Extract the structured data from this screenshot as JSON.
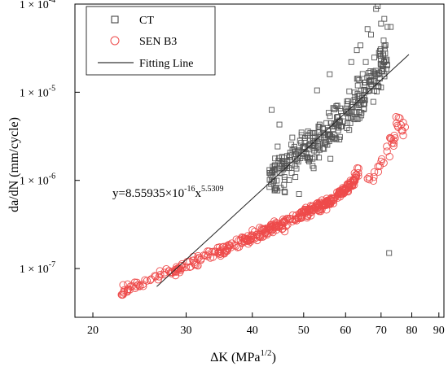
{
  "chart_data": {
    "type": "scatter",
    "xlabel": "ΔK (MPa",
    "xlabel_sup": "1/2",
    "xlabel_end": ")",
    "ylabel": "da/dN (mm/cycle)",
    "x_scale": "log",
    "y_scale": "log",
    "xlim": [
      18.5,
      92
    ],
    "ylim": [
      2.8e-08,
      0.0001
    ],
    "x_ticks": [
      20,
      30,
      40,
      50,
      60,
      70,
      80,
      90
    ],
    "x_tick_labels": [
      "20",
      "30",
      "40",
      "50",
      "60",
      "70",
      "80",
      "90"
    ],
    "y_ticks": [
      1e-07,
      1e-06,
      1e-05,
      0.0001
    ],
    "y_tick_labels": [
      {
        "base": "1 × 10",
        "exp": "-7"
      },
      {
        "base": "1 × 10",
        "exp": "-6"
      },
      {
        "base": "1 × 10",
        "exp": "-5"
      },
      {
        "base": "1 × 10",
        "exp": "-4"
      }
    ],
    "grid": false,
    "legend": {
      "placement": "top-left",
      "entries": [
        {
          "label": "CT",
          "marker": "square"
        },
        {
          "label": "SEN B3",
          "marker": "circle"
        },
        {
          "label": "Fitting Line",
          "marker": "line"
        }
      ]
    },
    "annotation": {
      "prefix": "y=8.55935×10",
      "exp1": "-16",
      "middle": "x",
      "exp2": "5.5309"
    },
    "fit_line": {
      "C": 8.55935e-16,
      "m": 5.5309,
      "x_range": [
        26.4,
        79
      ]
    },
    "series": [
      {
        "name": "CT",
        "marker": "square",
        "color": "#555555",
        "trend_points": [
          [
            43,
            1e-06
          ],
          [
            45,
            1.3e-06
          ],
          [
            48,
            1.7e-06
          ],
          [
            50,
            2.2e-06
          ],
          [
            53,
            2.8e-06
          ],
          [
            56,
            3.4e-06
          ],
          [
            58,
            4.2e-06
          ],
          [
            60,
            5.5e-06
          ],
          [
            62,
            7.2e-06
          ],
          [
            64,
            9.2e-06
          ],
          [
            66,
            1.2e-05
          ],
          [
            68,
            1.5e-05
          ],
          [
            70,
            2e-05
          ],
          [
            72,
            2.5e-05
          ]
        ],
        "outliers": [
          [
            69,
            9.5e-05
          ],
          [
            68.5,
            8.8e-05
          ],
          [
            70,
            6e-05
          ],
          [
            72,
            5.5e-05
          ],
          [
            73,
            5.5e-05
          ],
          [
            66,
            5.2e-05
          ],
          [
            67,
            4.5e-05
          ],
          [
            63,
            3e-05
          ],
          [
            64,
            3.4e-05
          ],
          [
            72.5,
            1.5e-07
          ],
          [
            43.5,
            6.3e-06
          ],
          [
            56,
            1.6e-05
          ],
          [
            46,
            7.5e-07
          ],
          [
            49,
            7e-07
          ],
          [
            53,
            1.05e-05
          ],
          [
            71,
            6.8e-05
          ],
          [
            65.5,
            2.2e-05
          ],
          [
            61.5,
            2.2e-05
          ],
          [
            45,
            4.3e-06
          ]
        ]
      },
      {
        "name": "SEN B3",
        "marker": "circle",
        "color": "#ee4b4b",
        "trend_points": [
          [
            22.5,
            5.6e-08
          ],
          [
            25,
            6.8e-08
          ],
          [
            27,
            8.5e-08
          ],
          [
            30,
            1.08e-07
          ],
          [
            33,
            1.38e-07
          ],
          [
            36,
            1.75e-07
          ],
          [
            40,
            2.3e-07
          ],
          [
            44,
            2.9e-07
          ],
          [
            48,
            3.7e-07
          ],
          [
            52,
            4.6e-07
          ],
          [
            56,
            5.8e-07
          ],
          [
            59,
            7.2e-07
          ],
          [
            62,
            9.5e-07
          ],
          [
            63.5,
            1.3e-06
          ]
        ],
        "hook_points": [
          [
            66.5,
            1e-06
          ],
          [
            67.5,
            1.15e-06
          ],
          [
            69,
            1.45e-06
          ],
          [
            70.5,
            1.8e-06
          ],
          [
            72,
            2.1e-06
          ],
          [
            73.5,
            2.6e-06
          ],
          [
            74.5,
            3.3e-06
          ],
          [
            75.5,
            3.9e-06
          ],
          [
            76.5,
            4.5e-06
          ],
          [
            77,
            3.7e-06
          ],
          [
            75,
            4.9e-06
          ],
          [
            73,
            3.1e-06
          ]
        ]
      }
    ]
  }
}
